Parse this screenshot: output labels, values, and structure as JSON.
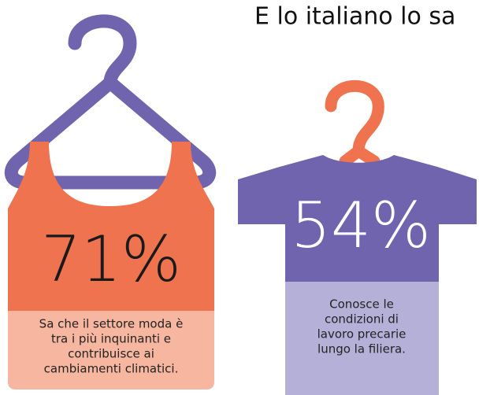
{
  "title": "E lo italiano lo sa",
  "items": [
    {
      "value_label": "71%",
      "description": [
        "Sa che il settore moda è",
        "tra i più inquinanti e",
        "contribuisce ai",
        "cambiamenti climatici."
      ]
    },
    {
      "value_label": "54%",
      "description": [
        "Conosce le",
        "condizioni di",
        "lavoro precarie",
        "lungo la filiera."
      ]
    }
  ]
}
